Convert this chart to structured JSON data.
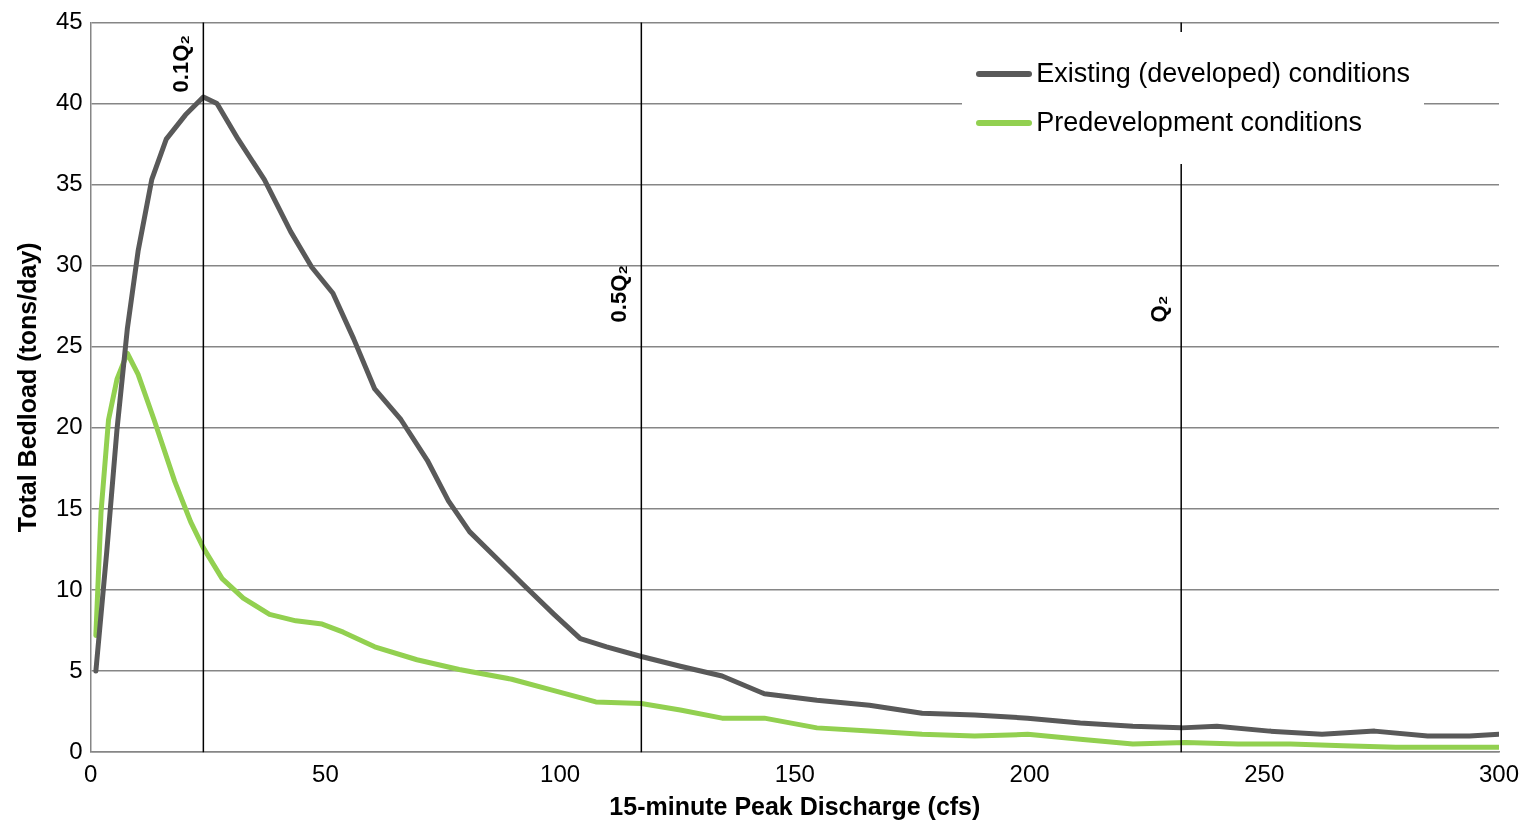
{
  "chart_data": {
    "type": "line",
    "xlabel": "15-minute Peak Discharge (cfs)",
    "ylabel": "Total Bedload (tons/day)",
    "xlim": [
      0,
      300
    ],
    "xticks": [
      0,
      50,
      100,
      150,
      200,
      250,
      300
    ],
    "ylim": [
      0,
      45
    ],
    "yticks": [
      0,
      5,
      10,
      15,
      20,
      25,
      30,
      35,
      40,
      45
    ],
    "grid": "y",
    "legend": "top right",
    "marker": "none",
    "line_style": "solid",
    "ref_lines": [
      {
        "axis": "x",
        "value": 24,
        "label": "0.1Q₂",
        "color": "#000000"
      },
      {
        "axis": "x",
        "value": 117.3,
        "label": "0.5Q₂",
        "color": "#000000"
      },
      {
        "axis": "x",
        "value": 232.3,
        "label": "Q₂",
        "color": "#000000"
      }
    ],
    "series": [
      {
        "name": "Existing (developed) conditions",
        "color": "#595959",
        "x": [
          1.1,
          3.4,
          5.6,
          7.8,
          10.1,
          13,
          16.1,
          20.2,
          24,
          26.9,
          31.4,
          37,
          42.6,
          47.1,
          51.6,
          56,
          60.5,
          66.1,
          71.7,
          76.2,
          80.7,
          86.3,
          91.9,
          98.7,
          104.3,
          109.9,
          117.3,
          125.6,
          134.5,
          143.5,
          154.7,
          165.9,
          177.1,
          188.3,
          199.6,
          210.8,
          222,
          232.3,
          239.9,
          251.1,
          262.3,
          273.5,
          284.8,
          293.7,
          300
        ],
        "values": [
          5.0,
          12.3,
          19.9,
          26.1,
          30.9,
          35.3,
          37.8,
          39.3,
          40.4,
          40.0,
          37.8,
          35.3,
          32.1,
          29.9,
          28.3,
          25.5,
          22.4,
          20.5,
          18.0,
          15.5,
          13.6,
          12.0,
          10.4,
          8.5,
          7.0,
          6.5,
          5.9,
          5.3,
          4.7,
          3.6,
          3.2,
          2.9,
          2.4,
          2.3,
          2.1,
          1.8,
          1.6,
          1.5,
          1.6,
          1.3,
          1.1,
          1.3,
          1.0,
          1.0,
          1.1
        ]
      },
      {
        "name": "Predevelopment conditions",
        "color": "#92d050",
        "x": [
          1.1,
          2.2,
          3.8,
          5.6,
          7.8,
          10.1,
          13.5,
          17.9,
          21.3,
          24,
          28,
          32.5,
          38.1,
          43.7,
          49.3,
          53.8,
          60.5,
          69.5,
          78.5,
          89.7,
          98.7,
          107.6,
          117.3,
          125.6,
          134.5,
          143.5,
          154.7,
          165.9,
          177.1,
          188.3,
          199.6,
          210.8,
          222,
          233.2,
          244.4,
          255.6,
          266.8,
          278,
          289.2,
          300
        ],
        "values": [
          7.2,
          14.8,
          20.5,
          23.0,
          24.6,
          23.3,
          20.5,
          16.7,
          14.2,
          12.6,
          10.7,
          9.5,
          8.5,
          8.1,
          7.9,
          7.4,
          6.5,
          5.7,
          5.1,
          4.5,
          3.8,
          3.1,
          3.0,
          2.6,
          2.1,
          2.1,
          1.5,
          1.3,
          1.1,
          1.0,
          1.1,
          0.8,
          0.5,
          0.6,
          0.5,
          0.5,
          0.4,
          0.3,
          0.3,
          0.3
        ]
      }
    ]
  }
}
